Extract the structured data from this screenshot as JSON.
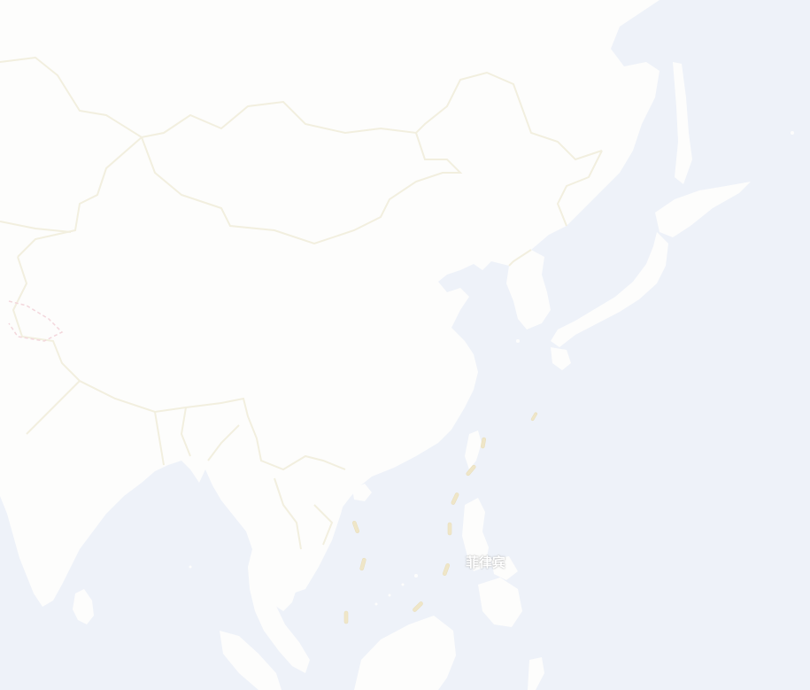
{
  "map": {
    "labels": {
      "philippines": "菲律宾"
    },
    "colors": {
      "sea": "#eef2f9",
      "land": "#fdfdfc",
      "land_alt": "#fbfbfa",
      "border": "#f2efdf",
      "disputed_border": "#f3d7dc",
      "dash_line": "#efe6c8",
      "label": "#ffffff"
    }
  }
}
